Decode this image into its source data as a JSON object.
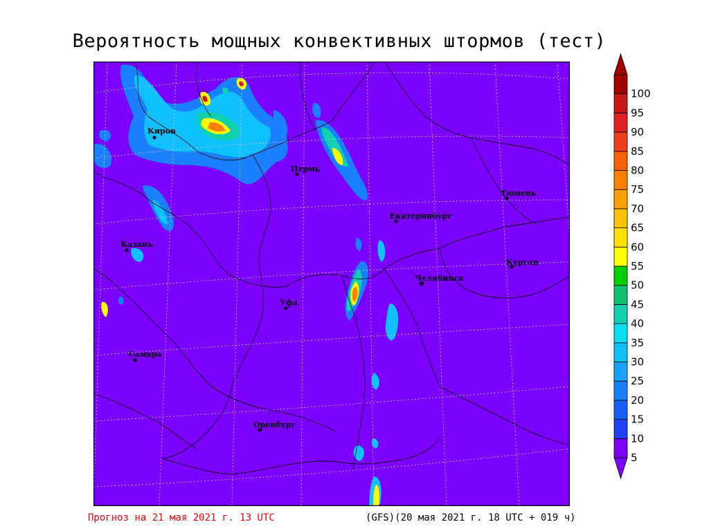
{
  "title": "Вероятность мощных конвективных штормов (тест)",
  "footer": {
    "forecast": "Прогноз на 21 мая 2021 г. 13 UTC",
    "model": "(GFS)(20 мая 2021 г. 18 UTC + 019 ч)"
  },
  "cities": [
    {
      "name": "Киров"
    },
    {
      "name": "Пермь"
    },
    {
      "name": "Тюмень"
    },
    {
      "name": "Екатеринбург"
    },
    {
      "name": "Казань"
    },
    {
      "name": "Курган"
    },
    {
      "name": "Челябинск"
    },
    {
      "name": "Уфа"
    },
    {
      "name": "Самара"
    },
    {
      "name": "Оренбург"
    }
  ],
  "legend": {
    "levels": [
      "5",
      "10",
      "15",
      "20",
      "25",
      "30",
      "35",
      "40",
      "45",
      "50",
      "55",
      "60",
      "65",
      "70",
      "75",
      "80",
      "85",
      "90",
      "95",
      "100"
    ],
    "colors": [
      "#7b00ff",
      "#2040ff",
      "#1560ff",
      "#1a80ff",
      "#1aa0ff",
      "#10c0ff",
      "#00e0f0",
      "#10d0b0",
      "#10c070",
      "#00d000",
      "#ffff00",
      "#ffe000",
      "#ffc000",
      "#ffa000",
      "#ff8000",
      "#ff6000",
      "#f04020",
      "#e02020",
      "#c81818",
      "#a00000"
    ]
  },
  "colors": {
    "background": "#7b00ff",
    "grid": "#d8c8ff",
    "borders": "#000000"
  }
}
